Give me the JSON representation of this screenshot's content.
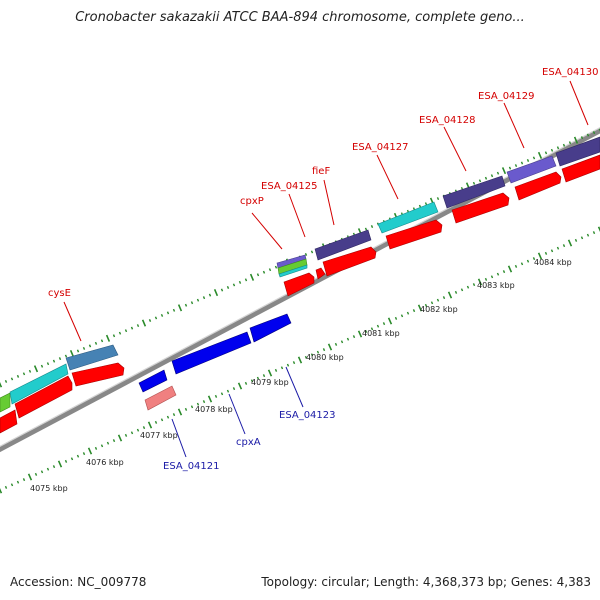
{
  "title": "Cronobacter sakazakii ATCC BAA-894 chromosome, complete geno...",
  "footer": {
    "accession": "Accession: NC_009778",
    "summary": "Topology: circular; Length: 4,368,373 bp; Genes: 4,383"
  },
  "colors": {
    "forward_label": "#d40000",
    "reverse_label": "#1a1aa6",
    "backbone": "#8c8c8c",
    "tick": "#2a8a2a",
    "cds_red": "#ff0000",
    "cds_blue": "#0000ee",
    "cds_slate": "#483d8b",
    "cds_cyan": "#22cccc",
    "cds_steel": "#4682b4",
    "cds_pink": "#f08080",
    "cds_green": "#66cc33",
    "cds_purple": "#6a5acd"
  },
  "kbp_labels": [
    "4075 kbp",
    "4076 kbp",
    "4077 kbp",
    "4078 kbp",
    "4079 kbp",
    "4080 kbp",
    "4081 kbp",
    "4082 kbp",
    "4083 kbp",
    "4084 kbp"
  ],
  "forward_genes": [
    "cysE",
    "cpxP",
    "ESA_04125",
    "fieF",
    "ESA_04127",
    "ESA_04128",
    "ESA_04129",
    "ESA_04130"
  ],
  "reverse_genes": [
    "ESA_04121",
    "cpxA",
    "ESA_04123"
  ]
}
